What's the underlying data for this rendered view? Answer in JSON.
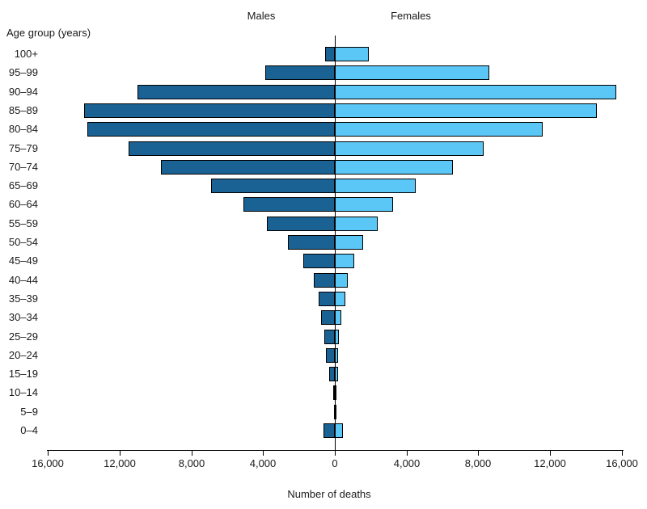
{
  "chart_data": {
    "type": "bar",
    "subtype": "population-pyramid",
    "y_axis_title": "Age group (years)",
    "x_axis_title": "Number of deaths",
    "males_label": "Males",
    "females_label": "Females",
    "categories": [
      "100+",
      "95–99",
      "90–94",
      "85–89",
      "80–84",
      "75–79",
      "70–74",
      "65–69",
      "60–64",
      "55–59",
      "50–54",
      "45–49",
      "40–44",
      "35–39",
      "30–34",
      "25–29",
      "20–24",
      "15–19",
      "10–14",
      "5–9",
      "0–4"
    ],
    "series": [
      {
        "name": "Males",
        "color": "#1A6294",
        "values": [
          550,
          3900,
          11000,
          14000,
          13800,
          11500,
          9700,
          6900,
          5100,
          3800,
          2600,
          1750,
          1150,
          900,
          780,
          600,
          510,
          320,
          100,
          60,
          650
        ]
      },
      {
        "name": "Females",
        "color": "#5BC7F6",
        "values": [
          1900,
          8600,
          15700,
          14600,
          11600,
          8300,
          6600,
          4500,
          3250,
          2400,
          1600,
          1100,
          700,
          570,
          350,
          210,
          200,
          180,
          70,
          60,
          450
        ]
      }
    ],
    "x_axis": {
      "side_max": 16000,
      "tick_step": 4000,
      "tick_labels": [
        "16,000",
        "12,000",
        "8,000",
        "4,000",
        "0",
        "4,000",
        "8,000",
        "12,000",
        "16,000"
      ]
    },
    "legend_position": "none",
    "grid": "off",
    "bar_border_color": "#000000",
    "background_color": "#ffffff"
  }
}
